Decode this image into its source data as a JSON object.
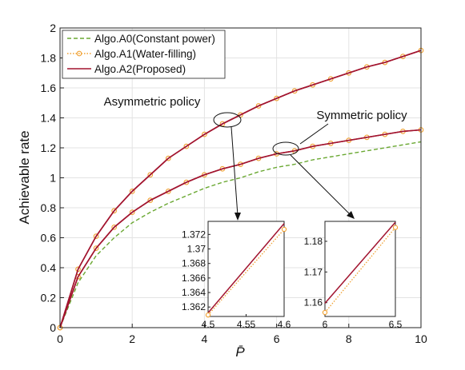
{
  "chart_data": {
    "type": "line",
    "title": "",
    "xlabel": "P̄",
    "ylabel": "Achievable rate",
    "xlim": [
      0,
      10
    ],
    "ylim": [
      0,
      2
    ],
    "xticks": [
      0,
      2,
      4,
      6,
      8,
      10
    ],
    "yticks": [
      0,
      0.2,
      0.4,
      0.6,
      0.8,
      1,
      1.2,
      1.4,
      1.6,
      1.8,
      2
    ],
    "grid": true,
    "legend": {
      "placement": "top-left",
      "entries": [
        {
          "label": "Algo.A0(Constant power)",
          "color": "#6aa832",
          "style": "dashed"
        },
        {
          "label": "Algo.A1(Water-filling)",
          "color": "#f0a030",
          "style": "dotted-circle"
        },
        {
          "label": "Algo.A2(Proposed)",
          "color": "#a2142f",
          "style": "solid"
        }
      ]
    },
    "x": [
      0,
      0.5,
      1,
      1.5,
      2,
      2.5,
      3,
      3.5,
      4,
      4.5,
      5,
      5.5,
      6,
      6.5,
      7,
      7.5,
      8,
      8.5,
      9,
      9.5,
      10
    ],
    "series": [
      {
        "name": "Algo.A0(Constant power)",
        "group": "symmetric",
        "color": "#6aa832",
        "style": "dashed",
        "values": [
          0,
          0.3,
          0.48,
          0.6,
          0.7,
          0.77,
          0.83,
          0.88,
          0.93,
          0.97,
          1.0,
          1.04,
          1.07,
          1.09,
          1.12,
          1.14,
          1.16,
          1.18,
          1.2,
          1.22,
          1.24
        ]
      },
      {
        "name": "Algo.A1(Water-filling)",
        "group": "symmetric",
        "color": "#f0a030",
        "style": "dotted-circle",
        "values": [
          0,
          0.34,
          0.53,
          0.67,
          0.77,
          0.85,
          0.91,
          0.97,
          1.02,
          1.06,
          1.09,
          1.13,
          1.16,
          1.18,
          1.21,
          1.23,
          1.25,
          1.27,
          1.29,
          1.31,
          1.32
        ]
      },
      {
        "name": "Algo.A2(Proposed)",
        "group": "symmetric",
        "color": "#a2142f",
        "style": "solid",
        "values": [
          0,
          0.34,
          0.53,
          0.67,
          0.77,
          0.85,
          0.91,
          0.97,
          1.02,
          1.06,
          1.09,
          1.13,
          1.16,
          1.18,
          1.21,
          1.23,
          1.25,
          1.27,
          1.29,
          1.31,
          1.32
        ]
      },
      {
        "name": "Algo.A1(Water-filling)",
        "group": "asymmetric",
        "color": "#f0a030",
        "style": "dotted-circle",
        "values": [
          0,
          0.39,
          0.61,
          0.78,
          0.91,
          1.02,
          1.13,
          1.21,
          1.29,
          1.36,
          1.42,
          1.48,
          1.53,
          1.58,
          1.62,
          1.66,
          1.7,
          1.74,
          1.77,
          1.81,
          1.85
        ]
      },
      {
        "name": "Algo.A2(Proposed)",
        "group": "asymmetric",
        "color": "#a2142f",
        "style": "solid",
        "values": [
          0,
          0.39,
          0.61,
          0.78,
          0.91,
          1.02,
          1.13,
          1.21,
          1.29,
          1.36,
          1.42,
          1.48,
          1.53,
          1.58,
          1.62,
          1.66,
          1.7,
          1.74,
          1.77,
          1.81,
          1.85
        ]
      }
    ],
    "annotations": [
      {
        "text": "Asymmetric policy",
        "ellipse_at": [
          4.5,
          1.39
        ]
      },
      {
        "text": "Symmetric policy",
        "ellipse_at": [
          6.2,
          1.17
        ]
      }
    ],
    "insets": [
      {
        "name": "asymmetric-zoom",
        "xlim": [
          4.5,
          4.6
        ],
        "ylim": [
          1.3607,
          1.3738
        ],
        "xticks": [
          "4.5",
          "4.55",
          "4.6"
        ],
        "yticks": [
          "1.362",
          "1.364",
          "1.366",
          "1.368",
          "1.37",
          "1.372"
        ],
        "ytick_values": [
          1.362,
          1.364,
          1.366,
          1.368,
          1.37,
          1.372
        ],
        "series": [
          {
            "name": "Algo.A2(Proposed)",
            "color": "#a2142f",
            "x": [
              4.5,
              4.6
            ],
            "y": [
              1.3612,
              1.3735
            ]
          },
          {
            "name": "Algo.A1(Water-filling)",
            "color": "#f0a030",
            "x": [
              4.5,
              4.6
            ],
            "y": [
              1.3609,
              1.3727
            ]
          }
        ]
      },
      {
        "name": "symmetric-zoom",
        "xlim": [
          6,
          6.5
        ],
        "ylim": [
          1.1555,
          1.1865
        ],
        "xticks": [
          "6",
          "6.5"
        ],
        "yticks": [
          "1.16",
          "1.17",
          "1.18"
        ],
        "ytick_values": [
          1.16,
          1.17,
          1.18
        ],
        "series": [
          {
            "name": "Algo.A2(Proposed)",
            "color": "#a2142f",
            "x": [
              6,
              6.5
            ],
            "y": [
              1.1598,
              1.1862
            ]
          },
          {
            "name": "Algo.A1(Water-filling)",
            "color": "#f0a030",
            "x": [
              6,
              6.5
            ],
            "y": [
              1.1568,
              1.1845
            ]
          }
        ]
      }
    ]
  }
}
